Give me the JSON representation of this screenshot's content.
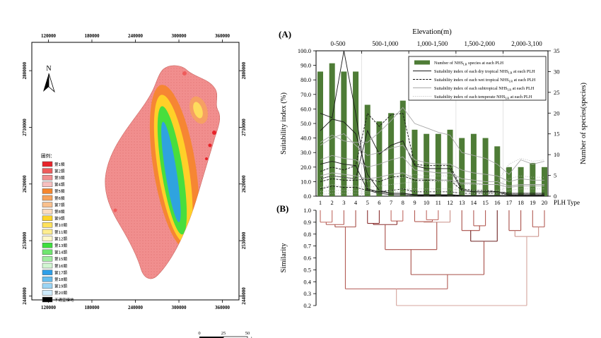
{
  "figure": {
    "panel_a_label": "(A)",
    "panel_b_label": "(B)"
  },
  "map": {
    "north_label": "N",
    "x_ticks": [
      "120000",
      "180000",
      "240000",
      "300000",
      "360000"
    ],
    "y_ticks": [
      "2800000",
      "2710000",
      "2620000",
      "2530000",
      "2440000"
    ],
    "legend_title": "圖例：",
    "legend": [
      {
        "label": "第1類",
        "color": "#e8232a"
      },
      {
        "label": "第2類",
        "color": "#ef5c5c"
      },
      {
        "label": "第3類",
        "color": "#f18f8f"
      },
      {
        "label": "第4類",
        "color": "#f7c0c0"
      },
      {
        "label": "第5類",
        "color": "#f5862e"
      },
      {
        "label": "第6類",
        "color": "#f7a35c"
      },
      {
        "label": "第7類",
        "color": "#f9c08d"
      },
      {
        "label": "第8類",
        "color": "#fbdcc0"
      },
      {
        "label": "第9類",
        "color": "#ffd428"
      },
      {
        "label": "第10類",
        "color": "#ffe25c"
      },
      {
        "label": "第11類",
        "color": "#ffed8f"
      },
      {
        "label": "第12類",
        "color": "#fff7c9"
      },
      {
        "label": "第13類",
        "color": "#3ede3e"
      },
      {
        "label": "第14類",
        "color": "#70e670"
      },
      {
        "label": "第15類",
        "color": "#a1eda1"
      },
      {
        "label": "第16類",
        "color": "#d1f5d1"
      },
      {
        "label": "第17類",
        "color": "#2e9fe8"
      },
      {
        "label": "第18類",
        "color": "#66bdee"
      },
      {
        "label": "第19類",
        "color": "#9ad4f4"
      },
      {
        "label": "第20類",
        "color": "#cdeafa"
      },
      {
        "label": "不適宜棲地",
        "color": "#000000"
      }
    ],
    "scale_bar": {
      "ticks": [
        "0",
        "25",
        "50"
      ],
      "unit": "km"
    }
  },
  "chart_data": [
    {
      "type": "bar",
      "title": "Elevation(m)",
      "elevation_groups": [
        "0-500",
        "500-1,000",
        "1,000-1,500",
        "1,500-2,000",
        "2,000-3,100"
      ],
      "categories": [
        "1",
        "2",
        "3",
        "4",
        "5",
        "6",
        "7",
        "8",
        "9",
        "10",
        "11",
        "12",
        "13",
        "14",
        "15",
        "16",
        "17",
        "18",
        "19",
        "20"
      ],
      "xlabel": "PLH Type",
      "ylabel_left": "Suitability index (%)",
      "ylabel_right": "Number of species(species)",
      "ylim_left": [
        0,
        100
      ],
      "yticks_left": [
        "0.0",
        "10.0",
        "20.0",
        "30.0",
        "40.0",
        "50.0",
        "60.0",
        "70.0",
        "80.0",
        "90.0",
        "100.0"
      ],
      "ylim_right": [
        0,
        35
      ],
      "yticks_right": [
        "0",
        "5",
        "10",
        "15",
        "20",
        "25",
        "30",
        "35"
      ],
      "legend": [
        {
          "swatch": "bar",
          "pre": "Number of NHS",
          "sub": "LR",
          "post": " species at each PLH"
        },
        {
          "swatch": "solid-dark",
          "pre": "Suitability index of each dry tropical NHS",
          "sub": "LR",
          "post": " at each PLH"
        },
        {
          "swatch": "dashed-dark",
          "pre": "Suitability index of each wet tropical NHS",
          "sub": "LR",
          "post": " at each PLH"
        },
        {
          "swatch": "solid-gray",
          "pre": "Suitability index of each subtropical NHS",
          "sub": "LR",
          "post": " at each PLH"
        },
        {
          "swatch": "dotted-gray",
          "pre": "Suitability index of each temperate NHS",
          "sub": "LR",
          "post": " at each PLH"
        }
      ],
      "bar_series": {
        "name": "Number of NHS LR species at each PLH",
        "color": "#4e7c36",
        "values": [
          30,
          32,
          30,
          30,
          22,
          18,
          20,
          23,
          16,
          15,
          15,
          16,
          14,
          15,
          14,
          12,
          7,
          7,
          8,
          7
        ]
      },
      "line_series": [
        {
          "style": "solid-dark",
          "values": [
            57,
            54,
            100,
            57,
            5,
            3,
            2,
            2,
            1,
            1,
            1,
            1,
            0.5,
            0.5,
            0.5,
            0.5,
            0.5,
            0.5,
            0.5,
            0.5
          ]
        },
        {
          "style": "solid-dark",
          "values": [
            45,
            53,
            51,
            43,
            15,
            4,
            2,
            2,
            1,
            1,
            1,
            1,
            0.5,
            0.5,
            0.5,
            0.5,
            0.3,
            0.3,
            0.3,
            0.3
          ]
        },
        {
          "style": "solid-dark",
          "values": [
            22,
            24,
            22,
            21,
            4,
            2,
            1,
            1,
            0.5,
            0.5,
            0.5,
            0.5,
            0.3,
            0.3,
            0.3,
            0.3,
            0.2,
            0.2,
            0.2,
            0.2
          ]
        },
        {
          "style": "solid-dark",
          "values": [
            12,
            14,
            13,
            12,
            45,
            29,
            35,
            38,
            21,
            19,
            19,
            19,
            4,
            3,
            3,
            3,
            2,
            2,
            2,
            2
          ]
        },
        {
          "style": "dashed-dark",
          "values": [
            17,
            20,
            18,
            21,
            57,
            48,
            56,
            57,
            22,
            21,
            21,
            21,
            5,
            4,
            4,
            3,
            2,
            2,
            2,
            2
          ]
        },
        {
          "style": "dashed-dark",
          "values": [
            10,
            12,
            11,
            11,
            12,
            10,
            13,
            14,
            11,
            11,
            11,
            11,
            4,
            3,
            3,
            3,
            1,
            1,
            1,
            1
          ]
        },
        {
          "style": "dashed-dark",
          "values": [
            5,
            7,
            6,
            6,
            4,
            3,
            4,
            5,
            3,
            3,
            3,
            3,
            2,
            2,
            2,
            2,
            1,
            1,
            1,
            1
          ]
        },
        {
          "style": "solid-gray",
          "values": [
            37,
            42,
            38,
            37,
            37,
            44,
            52,
            61,
            50,
            47,
            44,
            42,
            30,
            28,
            26,
            22,
            15,
            25,
            22,
            24
          ]
        },
        {
          "style": "solid-gray",
          "values": [
            35,
            40,
            43,
            35,
            28,
            30,
            33,
            35,
            25,
            23,
            22,
            22,
            18,
            16,
            15,
            14,
            10,
            12,
            11,
            11
          ]
        },
        {
          "style": "solid-gray",
          "values": [
            25,
            28,
            26,
            25,
            20,
            22,
            25,
            27,
            18,
            17,
            16,
            16,
            12,
            11,
            10,
            10,
            7,
            8,
            8,
            8
          ]
        },
        {
          "style": "solid-gray",
          "values": [
            14,
            16,
            15,
            14,
            12,
            13,
            15,
            16,
            12,
            12,
            11,
            11,
            9,
            9,
            8,
            8,
            6,
            7,
            7,
            7
          ]
        },
        {
          "style": "dotted-gray",
          "values": [
            12,
            14,
            13,
            12,
            10,
            11,
            12,
            13,
            15,
            14,
            14,
            14,
            12,
            11,
            10,
            10,
            22,
            26,
            24,
            25
          ]
        },
        {
          "style": "dotted-gray",
          "values": [
            6,
            8,
            7,
            7,
            6,
            7,
            8,
            9,
            10,
            10,
            10,
            10,
            8,
            8,
            8,
            8,
            12,
            14,
            13,
            13
          ]
        },
        {
          "style": "dotted-gray",
          "values": [
            3,
            4,
            4,
            4,
            3,
            4,
            4,
            5,
            5,
            5,
            5,
            5,
            4,
            4,
            4,
            4,
            6,
            7,
            7,
            7
          ]
        },
        {
          "style": "dotted-gray",
          "values": [
            1,
            2,
            2,
            2,
            2,
            2,
            3,
            3,
            3,
            3,
            3,
            3,
            2,
            2,
            2,
            2,
            4,
            5,
            5,
            5
          ]
        }
      ]
    },
    {
      "type": "dendrogram",
      "ylabel": "Similarity",
      "yticks": [
        "1.0",
        "0.9",
        "0.8",
        "0.7",
        "0.6",
        "0.5",
        "0.4",
        "0.3",
        "0.2"
      ],
      "ylim": [
        0.2,
        1.0
      ],
      "leaves": [
        "1",
        "2",
        "3",
        "4",
        "5",
        "6",
        "7",
        "8",
        "9",
        "10",
        "11",
        "12",
        "13",
        "14",
        "15",
        "16",
        "17",
        "18",
        "19",
        "20"
      ],
      "merges": [
        {
          "a": "1",
          "b": "2",
          "h": 0.9,
          "color": "#c06a62"
        },
        {
          "a": "#0",
          "b": "3",
          "h": 0.88,
          "color": "#b35c55"
        },
        {
          "a": "#1",
          "b": "4",
          "h": 0.86,
          "color": "#a84f48"
        },
        {
          "a": "5",
          "b": "6",
          "h": 0.89,
          "color": "#8a3030"
        },
        {
          "a": "7",
          "b": "8",
          "h": 0.91,
          "color": "#c06a62"
        },
        {
          "a": "#3",
          "b": "#4",
          "h": 0.88,
          "color": "#8a3030"
        },
        {
          "a": "10",
          "b": "11",
          "h": 0.92,
          "color": "#c06a62"
        },
        {
          "a": "9",
          "b": "#6",
          "h": 0.905,
          "color": "#b35c55"
        },
        {
          "a": "#7",
          "b": "12",
          "h": 0.9,
          "color": "#c98f86"
        },
        {
          "a": "#5",
          "b": "#8",
          "h": 0.67,
          "color": "#a84f48"
        },
        {
          "a": "14",
          "b": "15",
          "h": 0.87,
          "color": "#b35c55"
        },
        {
          "a": "13",
          "b": "#10",
          "h": 0.83,
          "color": "#a84f48"
        },
        {
          "a": "#11",
          "b": "16",
          "h": 0.74,
          "color": "#6e2323"
        },
        {
          "a": "#9",
          "b": "#12",
          "h": 0.46,
          "color": "#a84f48"
        },
        {
          "a": "#2",
          "b": "#13",
          "h": 0.34,
          "color": "#b35c55"
        },
        {
          "a": "17",
          "b": "18",
          "h": 0.83,
          "color": "#a84f48"
        },
        {
          "a": "19",
          "b": "20",
          "h": 0.86,
          "color": "#b35c55"
        },
        {
          "a": "#15",
          "b": "#16",
          "h": 0.78,
          "color": "#c98f86"
        },
        {
          "a": "#14",
          "b": "#17",
          "h": 0.2,
          "color": "#d4a49c"
        }
      ]
    }
  ]
}
